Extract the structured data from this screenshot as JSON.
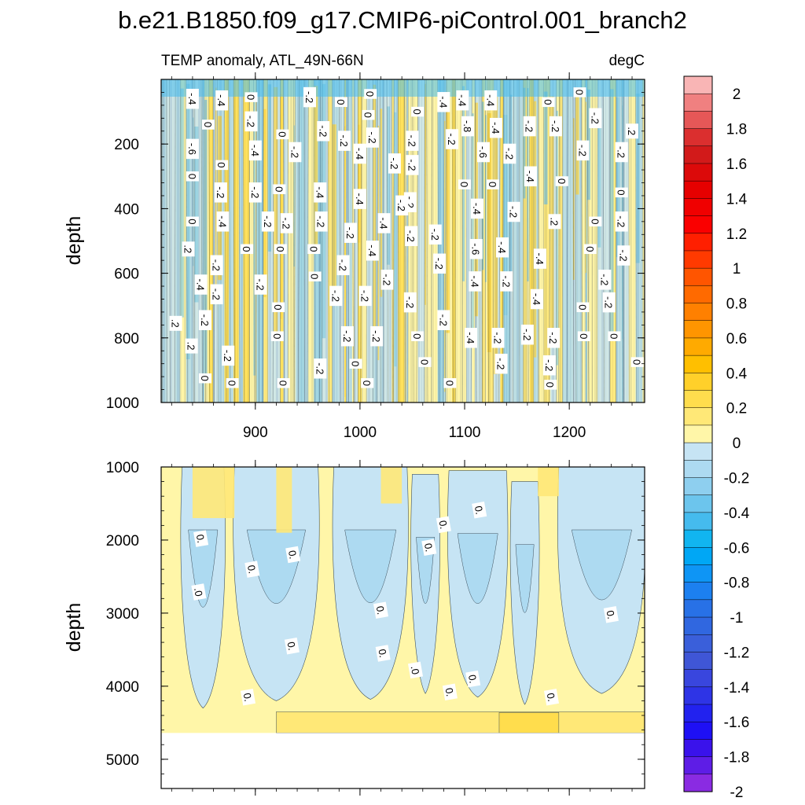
{
  "chart_data": {
    "type": "heatmap",
    "title": "b.e21.B1850.f09_g17.CMIP6-piControl.001_branch2",
    "subtitle_left": "TEMP anomaly, ATL_49N-66N",
    "subtitle_right": "degC",
    "x": {
      "range": [
        810,
        1272
      ],
      "ticks": [
        900,
        1000,
        1100,
        1200
      ],
      "tick_labels": [
        "900",
        "1000",
        "1100",
        "1200"
      ]
    },
    "panels": [
      {
        "name": "upper",
        "ylabel": "depth",
        "ylim": [
          0,
          1000
        ],
        "yticks": [
          200,
          400,
          600,
          800,
          1000
        ],
        "ytick_labels": [
          "200",
          "400",
          "600",
          "800",
          "1000"
        ],
        "contour_labels": [
          {
            "x": 840,
            "y": 60,
            "text": "-.4"
          },
          {
            "x": 868,
            "y": 65,
            "text": "-.4"
          },
          {
            "x": 896,
            "y": 55,
            "text": "0"
          },
          {
            "x": 952,
            "y": 55,
            "text": "-.2"
          },
          {
            "x": 982,
            "y": 70,
            "text": "0"
          },
          {
            "x": 1010,
            "y": 45,
            "text": "0"
          },
          {
            "x": 1080,
            "y": 70,
            "text": "-.4"
          },
          {
            "x": 1098,
            "y": 65,
            "text": "-.4"
          },
          {
            "x": 1125,
            "y": 65,
            "text": "-.4"
          },
          {
            "x": 1180,
            "y": 70,
            "text": "0"
          },
          {
            "x": 1210,
            "y": 40,
            "text": "0"
          },
          {
            "x": 855,
            "y": 140,
            "text": "0"
          },
          {
            "x": 896,
            "y": 130,
            "text": "-.2"
          },
          {
            "x": 1008,
            "y": 110,
            "text": "0"
          },
          {
            "x": 1055,
            "y": 100,
            "text": "0"
          },
          {
            "x": 1103,
            "y": 145,
            "text": "-.8"
          },
          {
            "x": 1130,
            "y": 150,
            "text": "-.4"
          },
          {
            "x": 1162,
            "y": 145,
            "text": "-.2"
          },
          {
            "x": 1187,
            "y": 145,
            "text": "-.2"
          },
          {
            "x": 1225,
            "y": 120,
            "text": "-.2"
          },
          {
            "x": 1260,
            "y": 160,
            "text": ".2"
          },
          {
            "x": 840,
            "y": 215,
            "text": "-.6"
          },
          {
            "x": 900,
            "y": 220,
            "text": "-.4"
          },
          {
            "x": 926,
            "y": 170,
            "text": "0"
          },
          {
            "x": 938,
            "y": 225,
            "text": "-.2"
          },
          {
            "x": 965,
            "y": 160,
            "text": "-.2"
          },
          {
            "x": 985,
            "y": 190,
            "text": "-.2"
          },
          {
            "x": 1012,
            "y": 180,
            "text": "-.2"
          },
          {
            "x": 1050,
            "y": 190,
            "text": "-.2"
          },
          {
            "x": 1088,
            "y": 185,
            "text": "-.2"
          },
          {
            "x": 1118,
            "y": 225,
            "text": "-.6"
          },
          {
            "x": 1143,
            "y": 230,
            "text": "-.2"
          },
          {
            "x": 1213,
            "y": 220,
            "text": "-.2"
          },
          {
            "x": 1250,
            "y": 225,
            "text": "-.2"
          },
          {
            "x": 868,
            "y": 265,
            "text": "0"
          },
          {
            "x": 1000,
            "y": 230,
            "text": "-.4"
          },
          {
            "x": 1033,
            "y": 260,
            "text": "-.2"
          },
          {
            "x": 1050,
            "y": 265,
            "text": "-.2"
          },
          {
            "x": 840,
            "y": 300,
            "text": "0"
          },
          {
            "x": 867,
            "y": 350,
            "text": "-.2"
          },
          {
            "x": 900,
            "y": 350,
            "text": "-.2"
          },
          {
            "x": 923,
            "y": 340,
            "text": "0"
          },
          {
            "x": 962,
            "y": 350,
            "text": "-.4"
          },
          {
            "x": 1000,
            "y": 370,
            "text": "-.4"
          },
          {
            "x": 1048,
            "y": 380,
            "text": "-.2"
          },
          {
            "x": 1100,
            "y": 325,
            "text": "0"
          },
          {
            "x": 1127,
            "y": 325,
            "text": "0"
          },
          {
            "x": 1163,
            "y": 300,
            "text": "-.4"
          },
          {
            "x": 1193,
            "y": 315,
            "text": "0"
          },
          {
            "x": 1250,
            "y": 350,
            "text": "0"
          },
          {
            "x": 840,
            "y": 440,
            "text": "0"
          },
          {
            "x": 869,
            "y": 440,
            "text": "-.4"
          },
          {
            "x": 912,
            "y": 440,
            "text": "-.2"
          },
          {
            "x": 930,
            "y": 445,
            "text": "-.2"
          },
          {
            "x": 963,
            "y": 440,
            "text": "-.2"
          },
          {
            "x": 1023,
            "y": 445,
            "text": "-.4"
          },
          {
            "x": 1040,
            "y": 390,
            "text": "-.2"
          },
          {
            "x": 1112,
            "y": 400,
            "text": "-.4"
          },
          {
            "x": 1147,
            "y": 410,
            "text": "-.2"
          },
          {
            "x": 1186,
            "y": 440,
            "text": ".2"
          },
          {
            "x": 1225,
            "y": 440,
            "text": "0"
          },
          {
            "x": 1250,
            "y": 440,
            "text": "-.2"
          },
          {
            "x": 836,
            "y": 525,
            "text": ".2"
          },
          {
            "x": 892,
            "y": 525,
            "text": "0"
          },
          {
            "x": 924,
            "y": 525,
            "text": "0"
          },
          {
            "x": 956,
            "y": 525,
            "text": "0"
          },
          {
            "x": 991,
            "y": 475,
            "text": "-.2"
          },
          {
            "x": 1012,
            "y": 530,
            "text": "-.4"
          },
          {
            "x": 1049,
            "y": 485,
            "text": "-.2"
          },
          {
            "x": 1072,
            "y": 480,
            "text": "-.2"
          },
          {
            "x": 1111,
            "y": 525,
            "text": "-.6"
          },
          {
            "x": 1136,
            "y": 520,
            "text": "-.4"
          },
          {
            "x": 1220,
            "y": 525,
            "text": "0"
          },
          {
            "x": 1252,
            "y": 545,
            "text": "-.2"
          },
          {
            "x": 1076,
            "y": 570,
            "text": "-.2"
          },
          {
            "x": 848,
            "y": 635,
            "text": "-.4"
          },
          {
            "x": 863,
            "y": 575,
            "text": "-.2"
          },
          {
            "x": 863,
            "y": 665,
            "text": "-.2"
          },
          {
            "x": 905,
            "y": 635,
            "text": "-.2"
          },
          {
            "x": 957,
            "y": 610,
            "text": "0"
          },
          {
            "x": 984,
            "y": 575,
            "text": "-.2"
          },
          {
            "x": 1026,
            "y": 620,
            "text": "-.2"
          },
          {
            "x": 1110,
            "y": 625,
            "text": "-.4"
          },
          {
            "x": 1140,
            "y": 625,
            "text": "-.2"
          },
          {
            "x": 1172,
            "y": 555,
            "text": "-.4"
          },
          {
            "x": 1234,
            "y": 620,
            "text": "-.2"
          },
          {
            "x": 977,
            "y": 670,
            "text": "-.2"
          },
          {
            "x": 1005,
            "y": 670,
            "text": "-.2"
          },
          {
            "x": 1048,
            "y": 690,
            "text": "-.2"
          },
          {
            "x": 1169,
            "y": 680,
            "text": "-.4"
          },
          {
            "x": 1238,
            "y": 690,
            "text": "-.2"
          },
          {
            "x": 922,
            "y": 705,
            "text": "0"
          },
          {
            "x": 1213,
            "y": 705,
            "text": "0"
          },
          {
            "x": 824,
            "y": 755,
            "text": ".2"
          },
          {
            "x": 852,
            "y": 745,
            "text": "-.2"
          },
          {
            "x": 1080,
            "y": 745,
            "text": "-.2"
          },
          {
            "x": 921,
            "y": 795,
            "text": "0"
          },
          {
            "x": 988,
            "y": 795,
            "text": "-.2"
          },
          {
            "x": 1016,
            "y": 795,
            "text": "-.2"
          },
          {
            "x": 1055,
            "y": 795,
            "text": "0"
          },
          {
            "x": 1106,
            "y": 800,
            "text": "-.4"
          },
          {
            "x": 1132,
            "y": 800,
            "text": "-.2"
          },
          {
            "x": 1160,
            "y": 790,
            "text": "-.2"
          },
          {
            "x": 1185,
            "y": 800,
            "text": "-.2"
          },
          {
            "x": 1214,
            "y": 795,
            "text": "0"
          },
          {
            "x": 1243,
            "y": 795,
            "text": "0"
          },
          {
            "x": 839,
            "y": 825,
            "text": ".2"
          },
          {
            "x": 874,
            "y": 855,
            "text": "-.2"
          },
          {
            "x": 996,
            "y": 880,
            "text": "0"
          },
          {
            "x": 1062,
            "y": 875,
            "text": "0"
          },
          {
            "x": 1135,
            "y": 880,
            "text": "-.2"
          },
          {
            "x": 1181,
            "y": 885,
            "text": "-.2"
          },
          {
            "x": 1265,
            "y": 875,
            "text": "0"
          },
          {
            "x": 962,
            "y": 895,
            "text": "-.2"
          },
          {
            "x": 852,
            "y": 925,
            "text": "0"
          },
          {
            "x": 878,
            "y": 940,
            "text": "0"
          },
          {
            "x": 927,
            "y": 940,
            "text": "0"
          },
          {
            "x": 1007,
            "y": 940,
            "text": "0"
          },
          {
            "x": 1086,
            "y": 940,
            "text": "0"
          },
          {
            "x": 1182,
            "y": 945,
            "text": "0"
          }
        ]
      },
      {
        "name": "lower",
        "ylabel": "depth",
        "ylim": [
          1000,
          5400
        ],
        "yticks": [
          1000,
          2000,
          3000,
          4000,
          5000
        ],
        "ytick_labels": [
          "1000",
          "2000",
          "3000",
          "4000",
          "5000"
        ],
        "ocean_floor_depth": 4640,
        "contour_labels": [
          {
            "x": 848,
            "y": 1980,
            "text": "0."
          },
          {
            "x": 846,
            "y": 2710,
            "text": ".0"
          },
          {
            "x": 897,
            "y": 2400,
            "text": "0."
          },
          {
            "x": 936,
            "y": 2200,
            "text": "0."
          },
          {
            "x": 935,
            "y": 3450,
            "text": "0."
          },
          {
            "x": 893,
            "y": 4150,
            "text": "0."
          },
          {
            "x": 1020,
            "y": 2960,
            "text": "0."
          },
          {
            "x": 1022,
            "y": 3550,
            "text": "0."
          },
          {
            "x": 1053,
            "y": 3780,
            "text": ".0"
          },
          {
            "x": 1066,
            "y": 2100,
            "text": "0."
          },
          {
            "x": 1080,
            "y": 1790,
            "text": "0."
          },
          {
            "x": 1086,
            "y": 4080,
            "text": "0."
          },
          {
            "x": 1108,
            "y": 3900,
            "text": "0."
          },
          {
            "x": 1114,
            "y": 1590,
            "text": "0."
          },
          {
            "x": 1183,
            "y": 4150,
            "text": "0."
          },
          {
            "x": 1240,
            "y": 3020,
            "text": "0."
          }
        ]
      }
    ],
    "colorbar": {
      "levels": [
        2,
        1.9,
        1.8,
        1.7,
        1.6,
        1.5,
        1.4,
        1.3,
        1.2,
        1.1,
        1,
        0.9,
        0.8,
        0.7,
        0.6,
        0.5,
        0.4,
        0.3,
        0.2,
        0.1,
        0,
        -0.1,
        -0.2,
        -0.3,
        -0.4,
        -0.5,
        -0.6,
        -0.7,
        -0.8,
        -0.9,
        -1,
        -1.1,
        -1.2,
        -1.3,
        -1.4,
        -1.5,
        -1.6,
        -1.7,
        -1.8,
        -1.9,
        -2
      ],
      "labels": [
        "2",
        "1.8",
        "1.6",
        "1.4",
        "1.2",
        "1",
        "0.8",
        "0.6",
        "0.4",
        "0.2",
        "0",
        "-0.2",
        "-0.4",
        "-0.6",
        "-0.8",
        "-1",
        "-1.2",
        "-1.4",
        "-1.6",
        "-1.8",
        "-2"
      ],
      "colors": [
        "#F9B5B5",
        "#F08080",
        "#E65757",
        "#DB2F2F",
        "#D21A1A",
        "#DC0A0A",
        "#E60000",
        "#F00000",
        "#FA0000",
        "#FF1F00",
        "#FF3A00",
        "#FF5500",
        "#FF6A00",
        "#FF8000",
        "#FF9500",
        "#FFAA00",
        "#FFBF00",
        "#FFD02A",
        "#FFDD4D",
        "#FFE877",
        "#FFF6A8",
        "#C6E4F4",
        "#ADDAF1",
        "#8ECFEF",
        "#6CC5ED",
        "#45BBEE",
        "#11B5F0",
        "#00A7F5",
        "#0E95F5",
        "#1C80F0",
        "#2871E6",
        "#3067E0",
        "#3A5FDA",
        "#3F56D6",
        "#3946DE",
        "#2E34E6",
        "#2222EF",
        "#1E10F5",
        "#3A12EB",
        "#5E1DE6",
        "#8A2BE2"
      ]
    }
  }
}
